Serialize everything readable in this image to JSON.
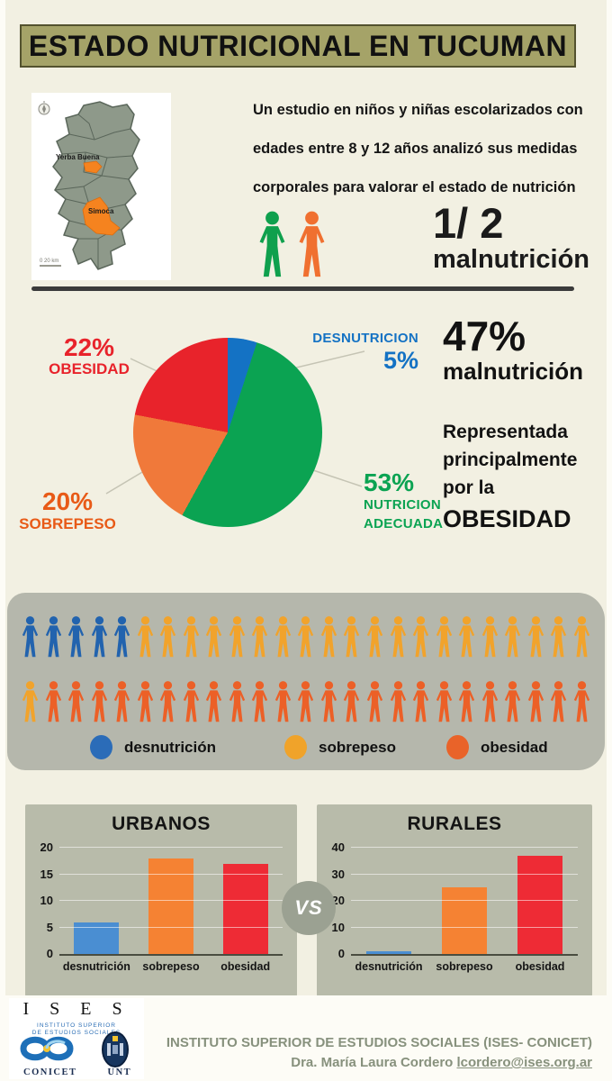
{
  "header": {
    "title": "ESTADO NUTRICIONAL EN TUCUMAN"
  },
  "intro": {
    "map": {
      "region_top": "Yerba Buena",
      "region_bottom": "Simoca",
      "scale": "0   20 km"
    },
    "paragraph_lines": [
      "Un estudio en niños y niñas escolarizados con",
      "edades entre 8 y 12 años analizó sus medidas",
      "corporales para valorar el estado de nutrición"
    ],
    "ratio": "1/ 2",
    "ratio_label": "malnutrición"
  },
  "summary": {
    "pct": "47%",
    "pct_label": "malnutrición",
    "text_lines": [
      "Representada",
      "principalmente",
      "por la"
    ],
    "emphasis": "OBESIDAD"
  },
  "chart_data": [
    {
      "type": "pie",
      "start_angle_deg": 0,
      "direction": "clockwise",
      "slices": [
        {
          "label": "DESNUTRICION",
          "value": 5,
          "pct_label": "5%",
          "color": "#1472c4"
        },
        {
          "label": "NUTRICION ADECUADA",
          "label_line1": "NUTRICION",
          "label_line2": "ADECUADA",
          "value": 53,
          "pct_label": "53%",
          "color": "#0ba352"
        },
        {
          "label": "SOBREPESO",
          "value": 20,
          "pct_label": "20%",
          "color": "#f0793a"
        },
        {
          "label": "OBESIDAD",
          "value": 22,
          "pct_label": "22%",
          "color": "#e8232b"
        }
      ]
    },
    {
      "type": "bar",
      "title": "URBANOS",
      "categories": [
        "desnutrición",
        "sobrepeso",
        "obesidad"
      ],
      "values": [
        6,
        18,
        17
      ],
      "bar_colors": [
        "#4a8ed2",
        "#f58233",
        "#ee2b35"
      ],
      "ylim": [
        0,
        20
      ],
      "yticks": [
        0,
        5,
        10,
        15,
        20
      ],
      "grid": true,
      "legend_position": "none"
    },
    {
      "type": "bar",
      "title": "RURALES",
      "categories": [
        "desnutrición",
        "sobrepeso",
        "obesidad"
      ],
      "values": [
        1,
        25,
        37
      ],
      "bar_colors": [
        "#4a8ed2",
        "#f58233",
        "#ee2b35"
      ],
      "ylim": [
        0,
        40
      ],
      "yticks": [
        0,
        10,
        20,
        30,
        40
      ],
      "grid": true,
      "legend_position": "none"
    }
  ],
  "pictogram": {
    "colors": {
      "desnutricion": "#2263ae",
      "sobrepeso": "#f1a32c",
      "obesidad": "#ec6027"
    },
    "rows": [
      {
        "groups": [
          {
            "key": "desnutricion",
            "count": 5
          },
          {
            "key": "sobrepeso",
            "count": 20
          }
        ]
      },
      {
        "groups": [
          {
            "key": "sobrepeso",
            "count": 1
          },
          {
            "key": "obesidad",
            "count": 24
          }
        ]
      }
    ],
    "legend": [
      {
        "label": "desnutrición",
        "color": "#2b6cb8"
      },
      {
        "label": "sobrepeso",
        "color": "#f0a32a"
      },
      {
        "label": "obesidad",
        "color": "#e96329"
      }
    ]
  },
  "versus": {
    "label": "VS"
  },
  "hero_icons": {
    "left_color": "#0fa04d",
    "right_color": "#f07030"
  },
  "footer": {
    "ises_acronym": "I S E S",
    "ises_sub_line1": "INSTITUTO SUPERIOR",
    "ises_sub_line2": "DE ESTUDIOS SOCIALES",
    "conicet_label": "CONICET",
    "unt_label": "UNT",
    "institute_line": "INSTITUTO SUPERIOR DE ESTUDIOS SOCIALES (ISES- CONICET)",
    "credit_name": "Dra. María Laura Cordero ",
    "credit_email": "lcordero@ises.org.ar"
  }
}
